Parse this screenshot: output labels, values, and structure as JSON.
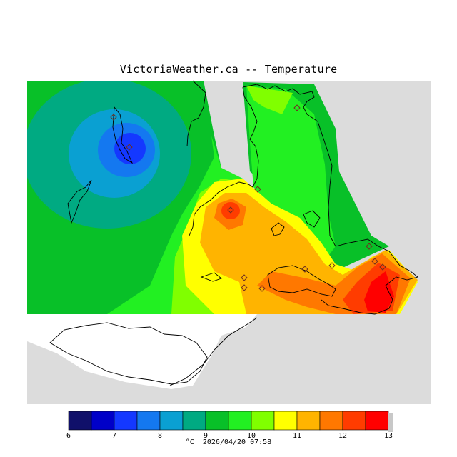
{
  "header": {
    "title": "VictoriaWeather.ca -- Temperature"
  },
  "legend": {
    "unit": "°C",
    "ticks": [
      "6",
      "7",
      "8",
      "9",
      "10",
      "11",
      "12",
      "13"
    ],
    "colors": [
      "#10106a",
      "#0000c8",
      "#1438ff",
      "#1478f0",
      "#0aa0d2",
      "#00aa82",
      "#08c028",
      "#22f022",
      "#80ff00",
      "#ffff00",
      "#ffb400",
      "#ff7800",
      "#ff3c00",
      "#ff0000"
    ]
  },
  "footer": {
    "timestamp": "2026/04/20 07:58"
  },
  "colors": {
    "water_nodata": "#dcdcdc",
    "land_blank": "#ffffff"
  }
}
